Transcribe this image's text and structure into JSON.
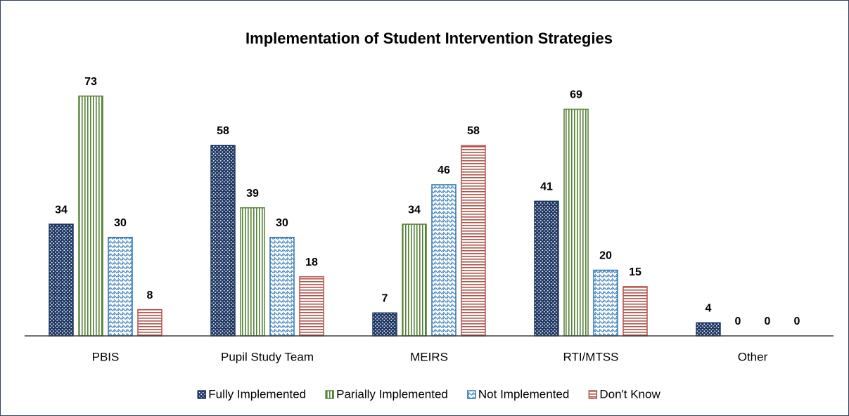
{
  "chart_data": {
    "type": "bar",
    "title": "Implementation of Student Intervention Strategies",
    "categories": [
      "PBIS",
      "Pupil Study Team",
      "MEIRS",
      "RTI/MTSS",
      "Other"
    ],
    "series": [
      {
        "name": "Fully Implemented",
        "color": "#1f3864",
        "values": [
          34,
          58,
          7,
          41,
          4
        ]
      },
      {
        "name": "Parially Implemented",
        "color": "#548235",
        "values": [
          73,
          39,
          34,
          69,
          0
        ]
      },
      {
        "name": "Not Implemented",
        "color": "#2e75b6",
        "values": [
          30,
          30,
          46,
          20,
          0
        ]
      },
      {
        "name": "Don't Know",
        "color": "#b0544a",
        "values": [
          8,
          18,
          58,
          15,
          0
        ]
      }
    ],
    "ylim": [
      0,
      80
    ],
    "legend": "bottom"
  }
}
